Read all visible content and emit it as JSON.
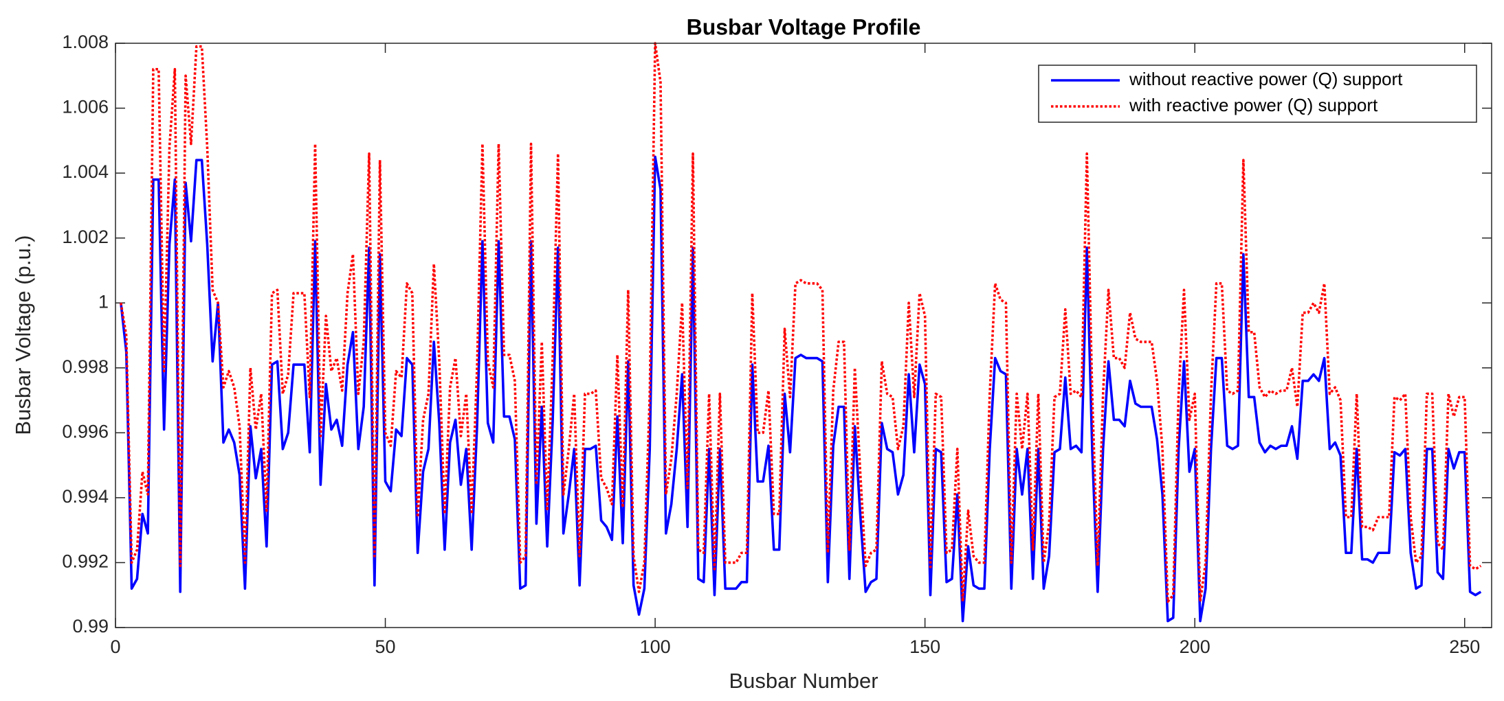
{
  "chart_data": {
    "type": "line",
    "title": "Busbar Voltage Profile",
    "x_label": "Busbar Number",
    "y_label": "Busbar Voltage (p.u.)",
    "x": [
      1,
      2,
      3,
      4,
      5,
      6,
      7,
      8,
      9,
      10,
      11,
      12,
      13,
      14,
      15,
      16,
      17,
      18,
      19,
      20,
      21,
      22,
      23,
      24,
      25,
      26,
      27,
      28,
      29,
      30,
      31,
      32,
      33,
      34,
      35,
      36,
      37,
      38,
      39,
      40,
      41,
      42,
      43,
      44,
      45,
      46,
      47,
      48,
      49,
      50,
      51,
      52,
      53,
      54,
      55,
      56,
      57,
      58,
      59,
      60,
      61,
      62,
      63,
      64,
      65,
      66,
      67,
      68,
      69,
      70,
      71,
      72,
      73,
      74,
      75,
      76,
      77,
      78,
      79,
      80,
      81,
      82,
      83,
      84,
      85,
      86,
      87,
      88,
      89,
      90,
      91,
      92,
      93,
      94,
      95,
      96,
      97,
      98,
      99,
      100,
      101,
      102,
      103,
      104,
      105,
      106,
      107,
      108,
      109,
      110,
      111,
      112,
      113,
      114,
      115,
      116,
      117,
      118,
      119,
      120,
      121,
      122,
      123,
      124,
      125,
      126,
      127,
      128,
      129,
      130,
      131,
      132,
      133,
      134,
      135,
      136,
      137,
      138,
      139,
      140,
      141,
      142,
      143,
      144,
      145,
      146,
      147,
      148,
      149,
      150,
      151,
      152,
      153,
      154,
      155,
      156,
      157,
      158,
      159,
      160,
      161,
      162,
      163,
      164,
      165,
      166,
      167,
      168,
      169,
      170,
      171,
      172,
      173,
      174,
      175,
      176,
      177,
      178,
      179,
      180,
      181,
      182,
      183,
      184,
      185,
      186,
      187,
      188,
      189,
      190,
      191,
      192,
      193,
      194,
      195,
      196,
      197,
      198,
      199,
      200,
      201,
      202,
      203,
      204,
      205,
      206,
      207,
      208,
      209,
      210,
      211,
      212,
      213,
      214,
      215,
      216,
      217,
      218,
      219,
      220,
      221,
      222,
      223,
      224,
      225,
      226,
      227,
      228,
      229,
      230,
      231,
      232,
      233,
      234,
      235,
      236,
      237,
      238,
      239,
      240,
      241,
      242,
      243,
      244,
      245,
      246,
      247,
      248,
      249,
      250,
      251,
      252,
      253
    ],
    "series": [
      {
        "name": "without reactive power (Q) support",
        "color": "#0000ff",
        "style": "solid",
        "values": [
          1,
          0.9985,
          0.9912,
          0.9915,
          0.9935,
          0.9929,
          1.0038,
          1.0038,
          0.9961,
          1.0018,
          1.0038,
          0.9911,
          1.0037,
          1.0019,
          1.0044,
          1.0044,
          1.0018,
          0.9982,
          1,
          0.9957,
          0.9961,
          0.9957,
          0.9947,
          0.9912,
          0.9962,
          0.9946,
          0.9955,
          0.9925,
          0.9981,
          0.9982,
          0.9955,
          0.996,
          0.9981,
          0.9981,
          0.9981,
          0.9954,
          1.0019,
          0.9944,
          0.9975,
          0.9961,
          0.9964,
          0.9956,
          0.9981,
          0.9991,
          0.9955,
          0.9968,
          1.0017,
          0.9913,
          1.0015,
          0.9945,
          0.9942,
          0.9961,
          0.9959,
          0.9983,
          0.9981,
          0.9923,
          0.9948,
          0.9955,
          0.9988,
          0.9963,
          0.9924,
          0.9957,
          0.9964,
          0.9944,
          0.9955,
          0.9924,
          0.9962,
          1.0019,
          0.9963,
          0.9957,
          1.0019,
          0.9965,
          0.9965,
          0.9958,
          0.9912,
          0.9913,
          1.0019,
          0.9932,
          0.9968,
          0.9925,
          0.9963,
          1.0017,
          0.9929,
          0.9941,
          0.9955,
          0.9913,
          0.9955,
          0.9955,
          0.9956,
          0.9933,
          0.9931,
          0.9927,
          0.9965,
          0.9926,
          0.9982,
          0.9913,
          0.9904,
          0.9912,
          0.9955,
          1.0045,
          1.0035,
          0.9929,
          0.9938,
          0.9955,
          0.9978,
          0.9931,
          1.0017,
          0.9915,
          0.9914,
          0.9955,
          0.991,
          0.9955,
          0.9912,
          0.9912,
          0.9912,
          0.9914,
          0.9914,
          0.9981,
          0.9945,
          0.9945,
          0.9956,
          0.9924,
          0.9924,
          0.9972,
          0.9954,
          0.9983,
          0.9984,
          0.9983,
          0.9983,
          0.9983,
          0.9982,
          0.9914,
          0.9956,
          0.9968,
          0.9968,
          0.9915,
          0.9962,
          0.9935,
          0.9911,
          0.9914,
          0.9915,
          0.9963,
          0.9955,
          0.9954,
          0.9941,
          0.9947,
          0.9978,
          0.9954,
          0.9981,
          0.9975,
          0.991,
          0.9955,
          0.9954,
          0.9914,
          0.9915,
          0.9941,
          0.9902,
          0.9925,
          0.9913,
          0.9912,
          0.9912,
          0.9955,
          0.9983,
          0.9979,
          0.9978,
          0.9912,
          0.9955,
          0.9941,
          0.9955,
          0.9915,
          0.9955,
          0.9912,
          0.9922,
          0.9954,
          0.9955,
          0.9977,
          0.9955,
          0.9956,
          0.9954,
          1.0017,
          0.9954,
          0.9911,
          0.9955,
          0.9982,
          0.9964,
          0.9964,
          0.9962,
          0.9976,
          0.9969,
          0.9968,
          0.9968,
          0.9968,
          0.9958,
          0.9941,
          0.9902,
          0.9903,
          0.9955,
          0.9982,
          0.9948,
          0.9955,
          0.9902,
          0.9912,
          0.9955,
          0.9983,
          0.9983,
          0.9956,
          0.9955,
          0.9956,
          1.0015,
          0.9971,
          0.9971,
          0.9957,
          0.9954,
          0.9956,
          0.9955,
          0.9956,
          0.9956,
          0.9962,
          0.9952,
          0.9976,
          0.9976,
          0.9978,
          0.9976,
          0.9983,
          0.9955,
          0.9957,
          0.9953,
          0.9923,
          0.9923,
          0.9955,
          0.9921,
          0.9921,
          0.992,
          0.9923,
          0.9923,
          0.9923,
          0.9954,
          0.9953,
          0.9955,
          0.9923,
          0.9912,
          0.9913,
          0.9955,
          0.9955,
          0.9917,
          0.9915,
          0.9955,
          0.9949,
          0.9954,
          0.9954,
          0.9911,
          0.991,
          0.9911
        ]
      },
      {
        "name": "with reactive power (Q) support",
        "color": "#ff0000",
        "style": "dotted",
        "values": [
          1,
          0.999,
          0.992,
          0.9924,
          0.9948,
          0.9941,
          1.0072,
          1.0072,
          0.9979,
          1.0048,
          1.0072,
          0.9919,
          1.007,
          1.0049,
          1.0079,
          1.0079,
          1.0048,
          1.0004,
          1,
          0.9974,
          0.9979,
          0.9974,
          0.9962,
          0.992,
          0.998,
          0.9961,
          0.9972,
          0.9936,
          1.0003,
          1.0004,
          0.9972,
          0.9978,
          1.0003,
          1.0003,
          1.0003,
          0.9971,
          1.0049,
          0.9959,
          0.9996,
          0.9979,
          0.9983,
          0.9973,
          1.0003,
          1.0015,
          0.9972,
          0.9988,
          1.0046,
          0.9922,
          1.0044,
          0.996,
          0.9956,
          0.9979,
          0.9977,
          1.0006,
          1.0003,
          0.9934,
          0.9964,
          0.9972,
          1.0012,
          0.9982,
          0.9935,
          0.9974,
          0.9983,
          0.9959,
          0.9972,
          0.9935,
          0.998,
          1.0049,
          0.9982,
          0.9974,
          1.0049,
          0.9984,
          0.9984,
          0.9976,
          0.992,
          0.9922,
          1.0049,
          0.9944,
          0.9988,
          0.9936,
          0.9982,
          1.0046,
          0.9941,
          0.9955,
          0.9972,
          0.9922,
          0.9972,
          0.9972,
          0.9973,
          0.9946,
          0.9943,
          0.9938,
          0.9984,
          0.9937,
          1.0004,
          0.9922,
          0.9911,
          0.992,
          0.9972,
          1.008,
          1.0068,
          0.9941,
          0.9952,
          0.9972,
          1,
          0.9943,
          1.0046,
          0.9924,
          0.9923,
          0.9972,
          0.9918,
          0.9972,
          0.992,
          0.992,
          0.992,
          0.9923,
          0.9923,
          1.0003,
          0.996,
          0.996,
          0.9973,
          0.9935,
          0.9935,
          0.9992,
          0.9971,
          1.0006,
          1.0007,
          1.0006,
          1.0006,
          1.0006,
          1.0004,
          0.9923,
          0.9973,
          0.9988,
          0.9988,
          0.9924,
          0.998,
          0.9948,
          0.9919,
          0.9923,
          0.9924,
          0.9982,
          0.9972,
          0.9971,
          0.9955,
          0.9962,
          1,
          0.9971,
          1.0003,
          0.9996,
          0.9918,
          0.9972,
          0.9971,
          0.9923,
          0.9924,
          0.9955,
          0.9908,
          0.9936,
          0.9922,
          0.992,
          0.992,
          0.9972,
          1.0006,
          1.0001,
          1,
          0.992,
          0.9972,
          0.9955,
          0.9972,
          0.9924,
          0.9972,
          0.992,
          0.9932,
          0.9971,
          0.9972,
          0.9998,
          0.9972,
          0.9973,
          0.9971,
          1.0046,
          0.9971,
          0.9919,
          0.9972,
          1.0004,
          0.9983,
          0.9983,
          0.998,
          0.9997,
          0.9989,
          0.9988,
          0.9988,
          0.9988,
          0.9976,
          0.9955,
          0.9908,
          0.991,
          0.9972,
          1.0004,
          0.9964,
          0.9972,
          0.9908,
          0.992,
          0.9972,
          1.0006,
          1.0006,
          0.9973,
          0.9972,
          0.9973,
          1.0044,
          0.9991,
          0.9991,
          0.9974,
          0.9971,
          0.9973,
          0.9972,
          0.9973,
          0.9973,
          0.998,
          0.9968,
          0.9997,
          0.9997,
          1,
          0.9997,
          1.0006,
          0.9972,
          0.9974,
          0.997,
          0.9934,
          0.9934,
          0.9972,
          0.9931,
          0.9931,
          0.993,
          0.9934,
          0.9934,
          0.9934,
          0.9971,
          0.997,
          0.9972,
          0.9934,
          0.992,
          0.9922,
          0.9972,
          0.9972,
          0.9926,
          0.9924,
          0.9972,
          0.9965,
          0.9971,
          0.9971,
          0.9919,
          0.9918,
          0.9919
        ]
      }
    ],
    "xlim": [
      0,
      255
    ],
    "xticks": [
      0,
      50,
      100,
      150,
      200,
      250
    ],
    "ylim": [
      0.99,
      1.008
    ],
    "yticks": [
      0.99,
      0.992,
      0.994,
      0.996,
      0.998,
      1,
      1.002,
      1.004,
      1.006,
      1.008
    ],
    "grid": false,
    "legend": "upper right"
  }
}
